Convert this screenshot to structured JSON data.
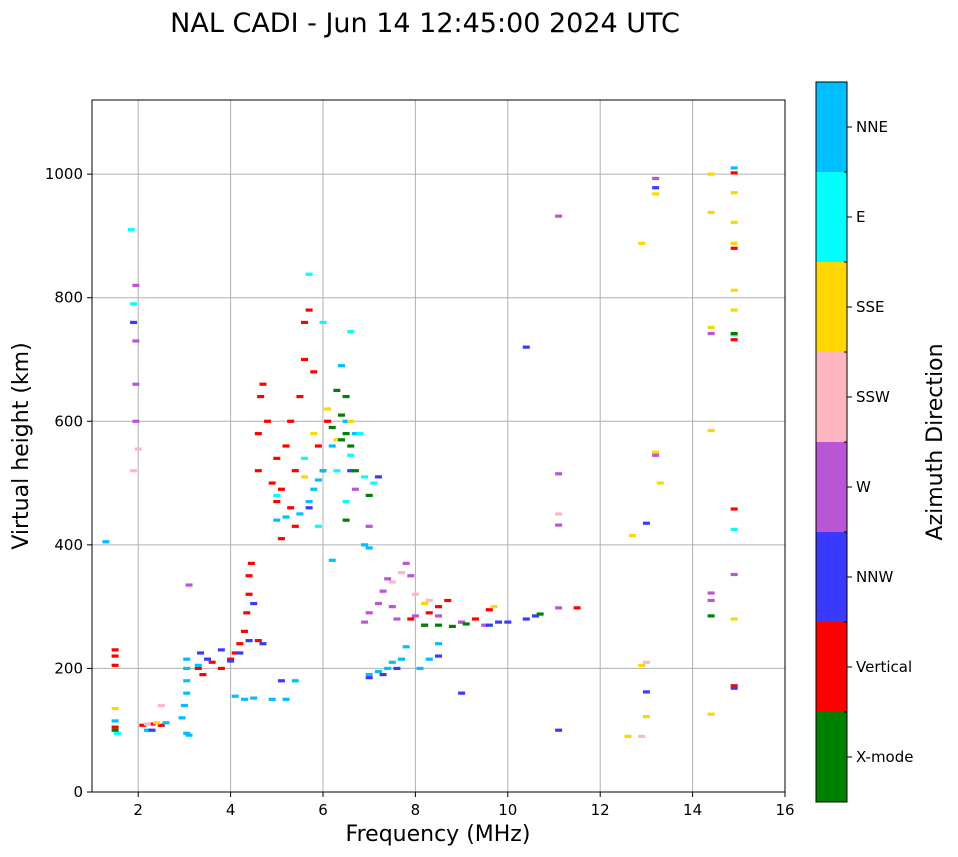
{
  "chart_data": {
    "type": "scatter",
    "title": "NAL CADI - Jun 14 12:45:00 2024 UTC",
    "xlabel": "Frequency (MHz)",
    "ylabel": "Virtual height (km)",
    "xlim": [
      1,
      16
    ],
    "ylim": [
      0,
      1120
    ],
    "xticks": [
      2,
      4,
      6,
      8,
      10,
      12,
      14,
      16
    ],
    "yticks": [
      0,
      200,
      400,
      600,
      800,
      1000
    ],
    "grid": true,
    "colorbar": {
      "title": "Azimuth Direction",
      "categories": [
        {
          "name": "NNE",
          "color": "#00bfff"
        },
        {
          "name": "E",
          "color": "#00ffff"
        },
        {
          "name": "SSE",
          "color": "#ffd700"
        },
        {
          "name": "SSW",
          "color": "#ffb6c1"
        },
        {
          "name": "W",
          "color": "#ba55d3"
        },
        {
          "name": "NNW",
          "color": "#3a3aff"
        },
        {
          "name": "Vertical",
          "color": "#ff0000"
        },
        {
          "name": "X-mode",
          "color": "#008000"
        }
      ]
    },
    "series": [
      {
        "name": "Vertical",
        "points": [
          [
            1.5,
            105
          ],
          [
            1.5,
            205
          ],
          [
            1.5,
            220
          ],
          [
            1.5,
            230
          ],
          [
            2.1,
            108
          ],
          [
            2.3,
            110
          ],
          [
            2.5,
            108
          ],
          [
            3.3,
            200
          ],
          [
            3.4,
            190
          ],
          [
            3.6,
            210
          ],
          [
            3.8,
            200
          ],
          [
            4.0,
            215
          ],
          [
            4.1,
            225
          ],
          [
            4.2,
            240
          ],
          [
            4.3,
            260
          ],
          [
            4.35,
            290
          ],
          [
            4.4,
            320
          ],
          [
            4.4,
            350
          ],
          [
            4.45,
            370
          ],
          [
            4.6,
            245
          ],
          [
            4.6,
            520
          ],
          [
            4.6,
            580
          ],
          [
            4.65,
            640
          ],
          [
            4.7,
            660
          ],
          [
            4.8,
            600
          ],
          [
            4.9,
            500
          ],
          [
            5.0,
            470
          ],
          [
            5.0,
            540
          ],
          [
            5.1,
            490
          ],
          [
            5.2,
            560
          ],
          [
            5.3,
            600
          ],
          [
            5.4,
            520
          ],
          [
            5.5,
            640
          ],
          [
            5.6,
            700
          ],
          [
            5.6,
            760
          ],
          [
            5.7,
            780
          ],
          [
            5.8,
            680
          ],
          [
            5.9,
            560
          ],
          [
            6.0,
            520
          ],
          [
            6.1,
            600
          ],
          [
            5.4,
            430
          ],
          [
            5.1,
            410
          ],
          [
            5.3,
            460
          ],
          [
            7.9,
            280
          ],
          [
            8.3,
            290
          ],
          [
            8.5,
            300
          ],
          [
            8.7,
            310
          ],
          [
            9.0,
            275
          ],
          [
            9.3,
            280
          ],
          [
            9.6,
            295
          ],
          [
            11.5,
            298
          ],
          [
            14.9,
            1002
          ],
          [
            14.9,
            880
          ],
          [
            14.9,
            732
          ],
          [
            14.9,
            458
          ],
          [
            14.9,
            172
          ]
        ]
      },
      {
        "name": "NNE",
        "points": [
          [
            1.5,
            115
          ],
          [
            2.2,
            100
          ],
          [
            2.6,
            112
          ],
          [
            2.95,
            120
          ],
          [
            3.0,
            140
          ],
          [
            3.05,
            160
          ],
          [
            3.05,
            180
          ],
          [
            3.05,
            200
          ],
          [
            3.05,
            215
          ],
          [
            3.05,
            95
          ],
          [
            3.1,
            92
          ],
          [
            3.3,
            205
          ],
          [
            4.1,
            155
          ],
          [
            4.3,
            150
          ],
          [
            4.5,
            152
          ],
          [
            4.9,
            150
          ],
          [
            5.2,
            150
          ],
          [
            5.4,
            180
          ],
          [
            5.0,
            440
          ],
          [
            5.2,
            445
          ],
          [
            5.5,
            450
          ],
          [
            5.7,
            470
          ],
          [
            5.8,
            490
          ],
          [
            5.9,
            505
          ],
          [
            6.0,
            520
          ],
          [
            6.2,
            560
          ],
          [
            6.4,
            690
          ],
          [
            6.5,
            600
          ],
          [
            6.7,
            580
          ],
          [
            6.9,
            400
          ],
          [
            7.0,
            395
          ],
          [
            6.2,
            375
          ],
          [
            7.0,
            190
          ],
          [
            7.2,
            195
          ],
          [
            7.4,
            200
          ],
          [
            7.5,
            210
          ],
          [
            7.7,
            215
          ],
          [
            7.8,
            235
          ],
          [
            8.1,
            200
          ],
          [
            8.3,
            215
          ],
          [
            8.5,
            240
          ],
          [
            14.9,
            1010
          ],
          [
            1.3,
            405
          ]
        ]
      },
      {
        "name": "E",
        "points": [
          [
            1.85,
            910
          ],
          [
            1.9,
            790
          ],
          [
            5.7,
            838
          ],
          [
            6.0,
            760
          ],
          [
            6.6,
            545
          ],
          [
            6.9,
            510
          ],
          [
            6.6,
            745
          ],
          [
            5.0,
            480
          ],
          [
            5.6,
            540
          ],
          [
            5.9,
            430
          ],
          [
            6.5,
            470
          ],
          [
            6.3,
            520
          ],
          [
            6.8,
            580
          ],
          [
            7.1,
            500
          ],
          [
            14.9,
            425
          ],
          [
            14.9,
            740
          ],
          [
            1.55,
            95
          ]
        ]
      },
      {
        "name": "SSE",
        "points": [
          [
            1.5,
            135
          ],
          [
            2.4,
            112
          ],
          [
            5.6,
            510
          ],
          [
            5.8,
            580
          ],
          [
            6.1,
            620
          ],
          [
            6.3,
            570
          ],
          [
            6.6,
            600
          ],
          [
            8.2,
            305
          ],
          [
            9.7,
            300
          ],
          [
            12.6,
            90
          ],
          [
            12.7,
            415
          ],
          [
            12.9,
            888
          ],
          [
            13.3,
            500
          ],
          [
            13.2,
            968
          ],
          [
            13.2,
            550
          ],
          [
            13.0,
            122
          ],
          [
            12.9,
            205
          ],
          [
            14.4,
            1000
          ],
          [
            14.4,
            938
          ],
          [
            14.4,
            752
          ],
          [
            14.4,
            585
          ],
          [
            14.4,
            126
          ],
          [
            14.9,
            970
          ],
          [
            14.9,
            922
          ],
          [
            14.9,
            888
          ],
          [
            14.9,
            812
          ],
          [
            14.9,
            780
          ],
          [
            14.9,
            280
          ]
        ]
      },
      {
        "name": "SSW",
        "points": [
          [
            1.9,
            520
          ],
          [
            2.0,
            555
          ],
          [
            2.2,
            110
          ],
          [
            2.5,
            140
          ],
          [
            7.5,
            340
          ],
          [
            7.7,
            355
          ],
          [
            8.0,
            320
          ],
          [
            8.3,
            310
          ],
          [
            11.1,
            450
          ],
          [
            12.9,
            90
          ],
          [
            13.0,
            210
          ]
        ]
      },
      {
        "name": "W",
        "points": [
          [
            1.95,
            820
          ],
          [
            1.95,
            730
          ],
          [
            1.95,
            660
          ],
          [
            1.95,
            600
          ],
          [
            3.1,
            335
          ],
          [
            6.9,
            275
          ],
          [
            7.0,
            290
          ],
          [
            7.2,
            305
          ],
          [
            7.3,
            325
          ],
          [
            7.4,
            345
          ],
          [
            7.5,
            300
          ],
          [
            7.6,
            280
          ],
          [
            7.8,
            370
          ],
          [
            7.9,
            350
          ],
          [
            8.0,
            285
          ],
          [
            8.2,
            270
          ],
          [
            8.5,
            285
          ],
          [
            9.0,
            275
          ],
          [
            9.5,
            270
          ],
          [
            6.7,
            490
          ],
          [
            7.0,
            430
          ],
          [
            11.1,
            515
          ],
          [
            11.1,
            298
          ],
          [
            11.1,
            432
          ],
          [
            11.1,
            932
          ],
          [
            13.2,
            545
          ],
          [
            13.2,
            993
          ],
          [
            14.4,
            742
          ],
          [
            14.4,
            322
          ],
          [
            14.4,
            310
          ],
          [
            14.9,
            352
          ]
        ]
      },
      {
        "name": "NNW",
        "points": [
          [
            1.9,
            760
          ],
          [
            2.3,
            100
          ],
          [
            3.35,
            225
          ],
          [
            3.5,
            215
          ],
          [
            3.8,
            230
          ],
          [
            4.0,
            212
          ],
          [
            4.2,
            225
          ],
          [
            4.4,
            245
          ],
          [
            4.5,
            305
          ],
          [
            4.7,
            240
          ],
          [
            5.1,
            180
          ],
          [
            5.7,
            460
          ],
          [
            6.6,
            520
          ],
          [
            7.2,
            510
          ],
          [
            7.0,
            185
          ],
          [
            7.3,
            190
          ],
          [
            7.6,
            200
          ],
          [
            8.5,
            220
          ],
          [
            9.0,
            160
          ],
          [
            9.6,
            270
          ],
          [
            9.8,
            275
          ],
          [
            10.0,
            275
          ],
          [
            10.4,
            280
          ],
          [
            10.6,
            285
          ],
          [
            10.4,
            720
          ],
          [
            11.1,
            100
          ],
          [
            13.0,
            435
          ],
          [
            13.0,
            162
          ],
          [
            13.2,
            978
          ],
          [
            14.9,
            168
          ]
        ]
      },
      {
        "name": "X-mode",
        "points": [
          [
            1.5,
            100
          ],
          [
            6.3,
            650
          ],
          [
            6.4,
            610
          ],
          [
            6.5,
            640
          ],
          [
            6.5,
            580
          ],
          [
            6.6,
            560
          ],
          [
            6.2,
            590
          ],
          [
            6.4,
            570
          ],
          [
            6.7,
            520
          ],
          [
            7.0,
            480
          ],
          [
            6.5,
            440
          ],
          [
            8.2,
            270
          ],
          [
            8.5,
            270
          ],
          [
            8.8,
            268
          ],
          [
            9.1,
            272
          ],
          [
            10.7,
            288
          ],
          [
            14.4,
            285
          ],
          [
            14.9,
            742
          ]
        ]
      }
    ]
  }
}
